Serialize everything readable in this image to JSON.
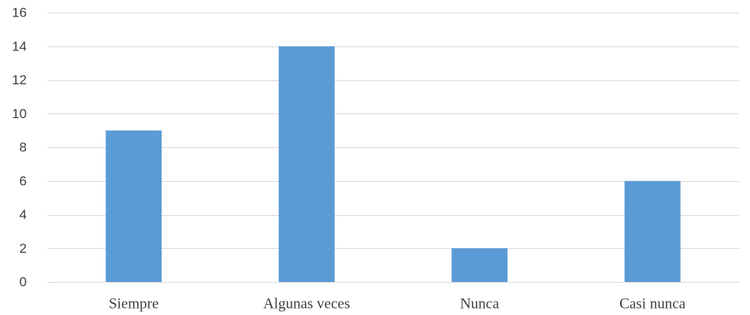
{
  "chart_data": {
    "type": "bar",
    "title": "",
    "xlabel": "",
    "ylabel": "",
    "categories": [
      "Siempre",
      "Algunas veces",
      "Nunca",
      "Casi nunca"
    ],
    "values": [
      9,
      14,
      2,
      6
    ],
    "ylim": [
      0,
      16
    ],
    "yticks": [
      0,
      2,
      4,
      6,
      8,
      10,
      12,
      14,
      16
    ],
    "grid": true,
    "legend": "none",
    "colors": {
      "bar": "#5b9bd5",
      "grid": "#d9d9d9",
      "text": "#404040"
    }
  }
}
